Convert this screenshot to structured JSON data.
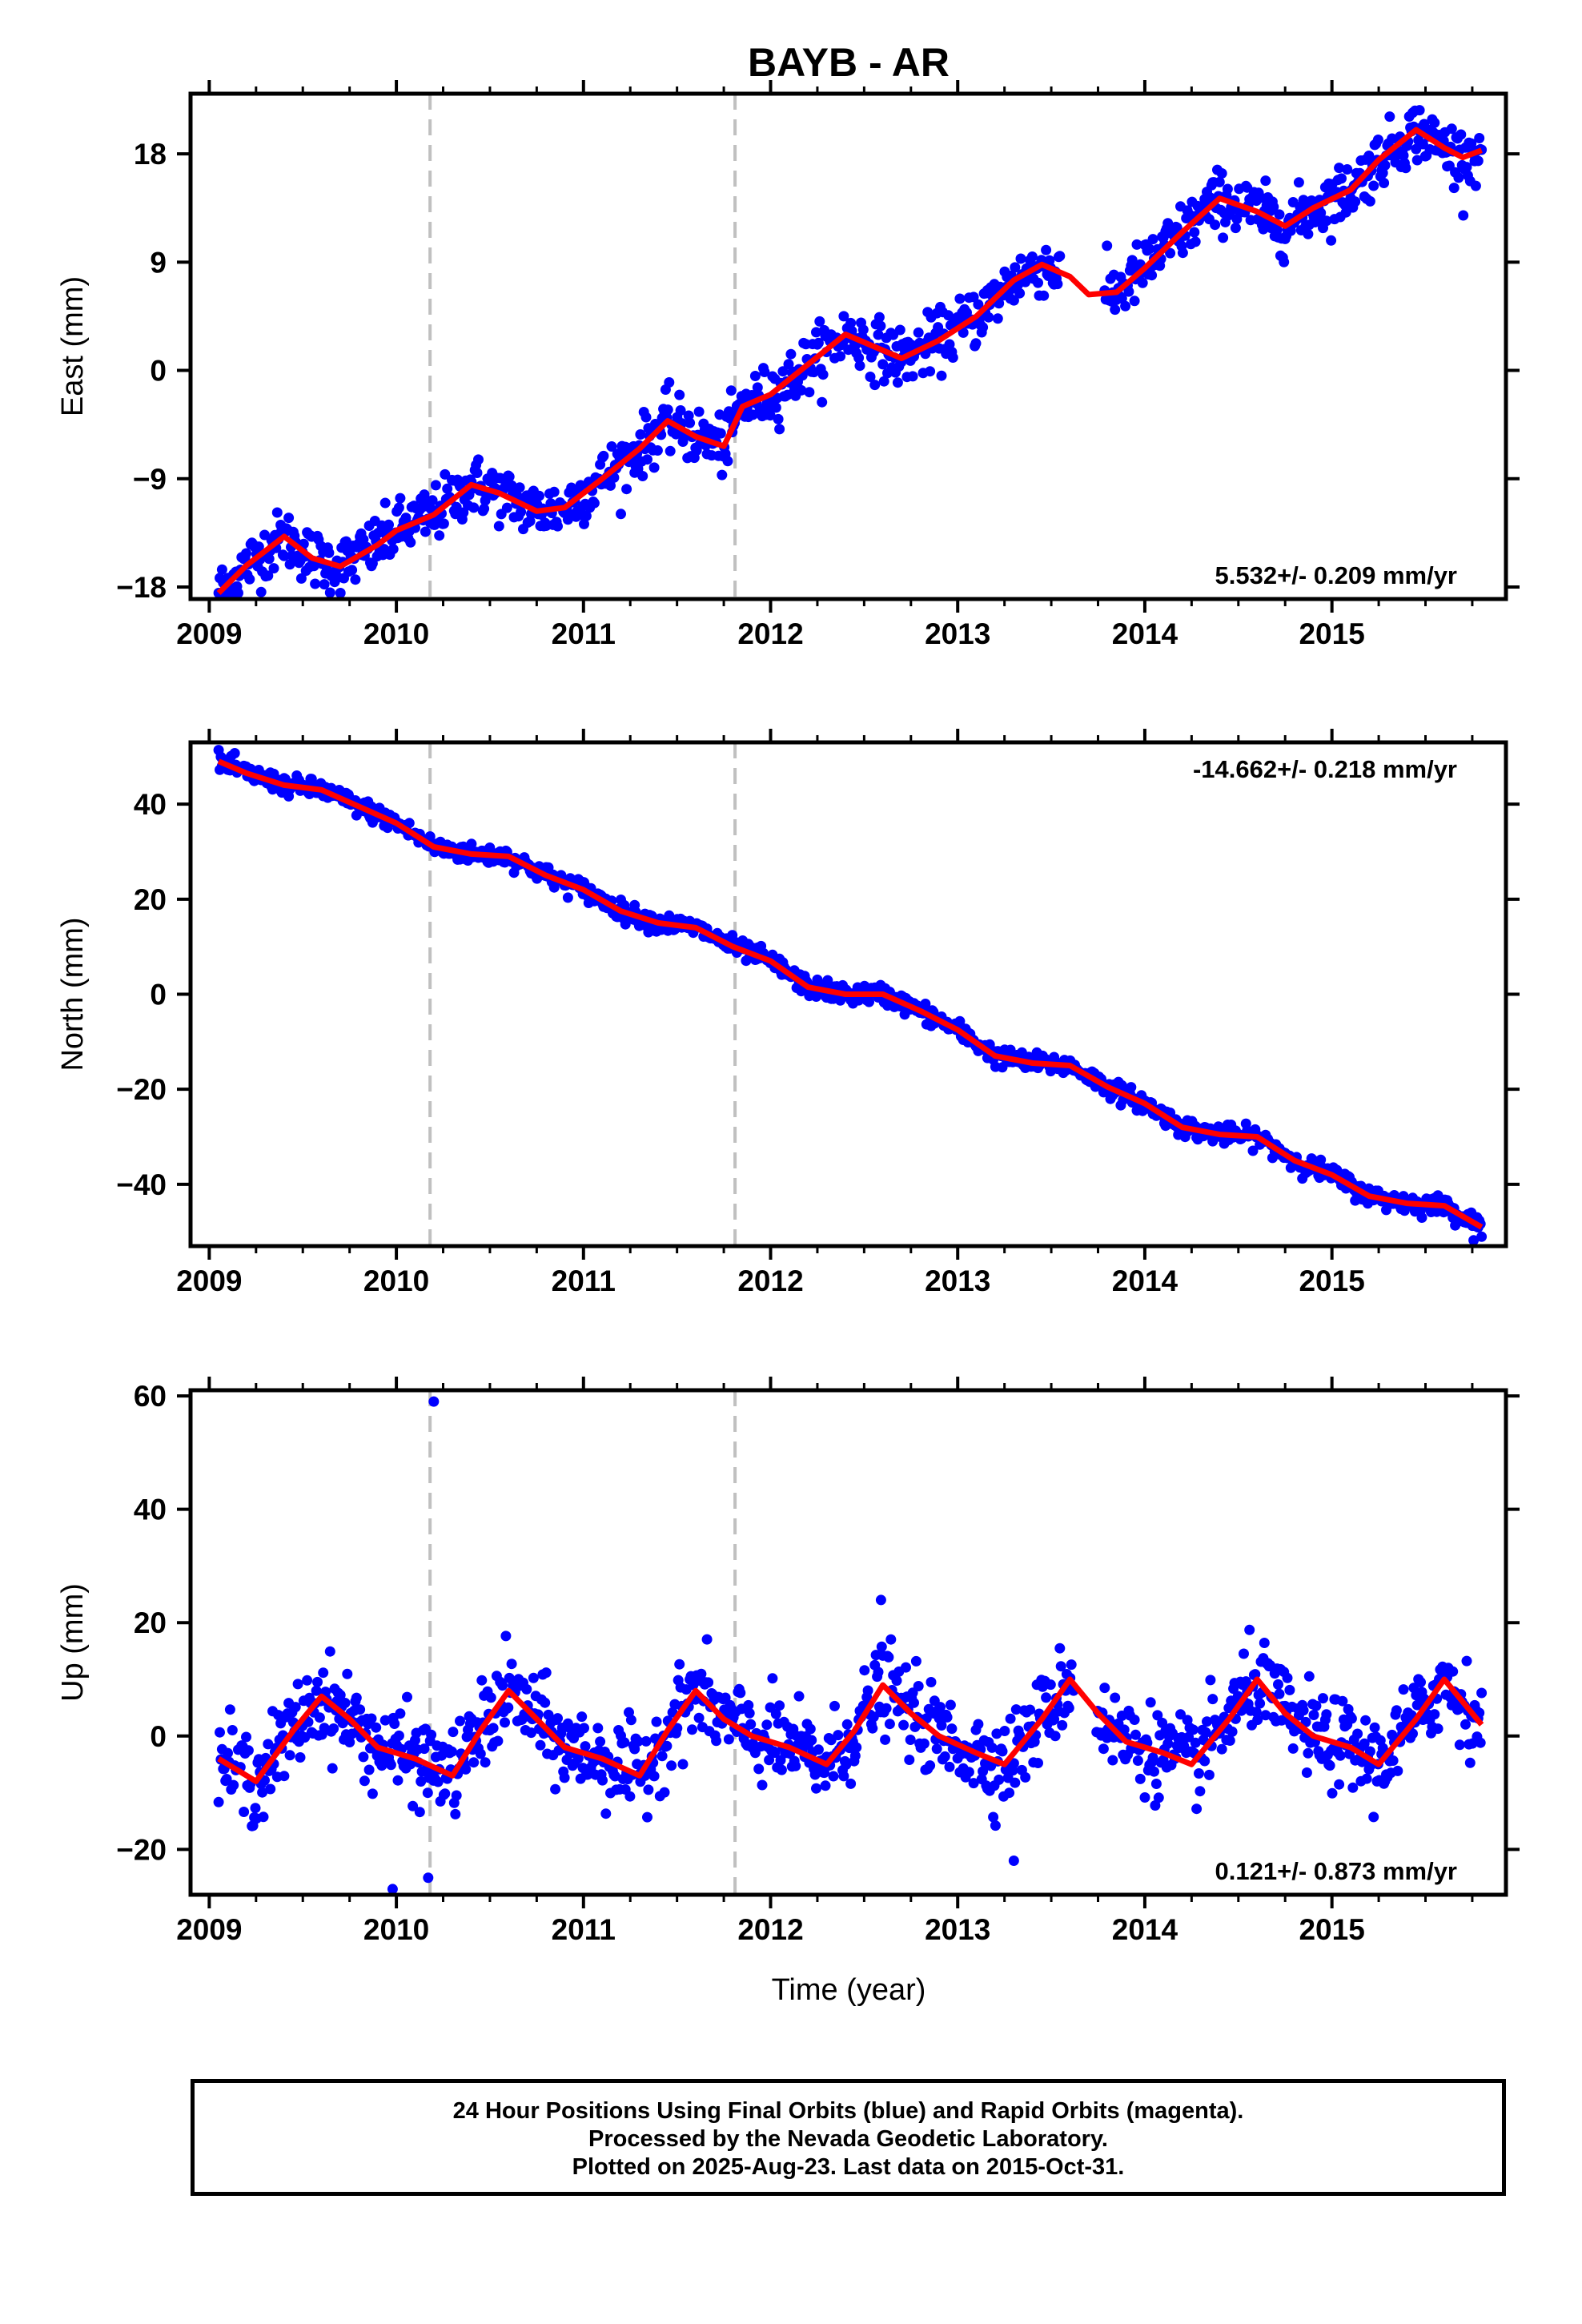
{
  "chart_data": {
    "type": "scatter",
    "title": "BAYB - AR",
    "xlabel": "Time (year)",
    "xlim": [
      2008.9,
      2015.93
    ],
    "x_ticks": [
      2009,
      2010,
      2011,
      2012,
      2013,
      2014,
      2015
    ],
    "x_tick_labels": [
      "2009",
      "2010",
      "2011",
      "2012",
      "2013",
      "2014",
      "2015"
    ],
    "vertical_dashed_lines_x": [
      2010.18,
      2011.81
    ],
    "colors": {
      "points": "#0000ff",
      "fit": "#ff0000",
      "dashed": "#c0c0c0",
      "frame": "#000000"
    },
    "series": [
      {
        "name": "Final Orbits",
        "panel": "east",
        "ylabel": "East (mm)",
        "ylim": [
          -19,
          23
        ],
        "y_ticks": [
          -18,
          -9,
          0,
          9,
          18
        ],
        "y_tick_labels": [
          "−18",
          "−9",
          "0",
          "9",
          "18"
        ],
        "rate_label": "5.532+/- 0.209 mm/yr",
        "x": [
          2009.05,
          2009.2,
          2009.4,
          2009.55,
          2009.7,
          2009.9,
          2010.0,
          2010.2,
          2010.4,
          2010.55,
          2010.75,
          2010.9,
          2011.1,
          2011.3,
          2011.45,
          2011.6,
          2011.75,
          2011.85,
          2012.0,
          2012.2,
          2012.4,
          2012.55,
          2012.7,
          2012.9,
          2013.1,
          2013.3,
          2013.45,
          2013.6,
          2013.7,
          2013.85,
          2014.0,
          2014.2,
          2014.4,
          2014.6,
          2014.75,
          2014.9,
          2015.1,
          2015.25,
          2015.45,
          2015.6,
          2015.7,
          2015.8
        ],
        "fit": [
          -18.5,
          -16.2,
          -13.8,
          -15.6,
          -16.3,
          -14.5,
          -13.3,
          -12.0,
          -9.5,
          -10.2,
          -11.7,
          -11.4,
          -9.0,
          -6.5,
          -4.2,
          -5.5,
          -6.3,
          -3.0,
          -2.0,
          0.5,
          3.0,
          2.0,
          1.0,
          2.5,
          4.5,
          7.5,
          8.8,
          7.8,
          6.3,
          6.5,
          8.5,
          11.5,
          14.3,
          13.2,
          12.0,
          13.5,
          15.0,
          17.5,
          20.0,
          18.5,
          17.7,
          18.3
        ]
      },
      {
        "name": "Final Orbits",
        "panel": "north",
        "ylabel": "North (mm)",
        "ylim": [
          -53,
          53
        ],
        "y_ticks": [
          -40,
          -20,
          0,
          20,
          40
        ],
        "y_tick_labels": [
          "−40",
          "−20",
          "0",
          "20",
          "40"
        ],
        "rate_label": "-14.662+/- 0.218 mm/yr",
        "x": [
          2009.05,
          2009.2,
          2009.4,
          2009.6,
          2009.8,
          2010.0,
          2010.2,
          2010.4,
          2010.6,
          2010.8,
          2011.0,
          2011.2,
          2011.4,
          2011.6,
          2011.8,
          2012.0,
          2012.2,
          2012.4,
          2012.6,
          2012.8,
          2013.0,
          2013.2,
          2013.4,
          2013.6,
          2013.8,
          2014.0,
          2014.2,
          2014.4,
          2014.6,
          2014.8,
          2015.0,
          2015.2,
          2015.4,
          2015.6,
          2015.8
        ],
        "fit": [
          49,
          46.5,
          44,
          43,
          39.5,
          36,
          31,
          29.5,
          29,
          25,
          22,
          17.5,
          15,
          14,
          10,
          7,
          1.5,
          0,
          0,
          -3.5,
          -7.5,
          -13,
          -14.5,
          -15,
          -19.5,
          -23,
          -28,
          -29.5,
          -30,
          -35,
          -38,
          -42.5,
          -44,
          -44.5,
          -49
        ]
      },
      {
        "name": "Final Orbits",
        "panel": "up",
        "ylabel": "Up (mm)",
        "ylim": [
          -28,
          61
        ],
        "y_ticks": [
          -20,
          0,
          20,
          40,
          60
        ],
        "y_tick_labels": [
          "−20",
          "0",
          "20",
          "40",
          "60"
        ],
        "rate_label": "0.121+/- 0.873 mm/yr",
        "x": [
          2009.05,
          2009.25,
          2009.45,
          2009.6,
          2009.75,
          2009.9,
          2010.1,
          2010.3,
          2010.45,
          2010.6,
          2010.75,
          2010.9,
          2011.1,
          2011.3,
          2011.45,
          2011.6,
          2011.75,
          2011.9,
          2012.1,
          2012.3,
          2012.45,
          2012.6,
          2012.75,
          2012.9,
          2013.1,
          2013.25,
          2013.45,
          2013.6,
          2013.75,
          2013.9,
          2014.1,
          2014.25,
          2014.45,
          2014.6,
          2014.75,
          2014.9,
          2015.1,
          2015.25,
          2015.45,
          2015.6,
          2015.8
        ],
        "fit": [
          -4,
          -8,
          1,
          7,
          3,
          -2,
          -4,
          -7,
          1,
          8,
          3,
          -2,
          -4,
          -7,
          1,
          8,
          3,
          0,
          -2,
          -5,
          1,
          9,
          4,
          0,
          -3,
          -5,
          3,
          10,
          4,
          -1,
          -3,
          -5,
          3,
          10,
          4,
          0,
          -2,
          -5,
          3,
          10,
          2
        ],
        "outliers": [
          {
            "x": 2010.2,
            "y": 59
          },
          {
            "x": 2009.98,
            "y": -27
          },
          {
            "x": 2010.17,
            "y": -25
          },
          {
            "x": 2012.59,
            "y": 24
          },
          {
            "x": 2013.3,
            "y": -22
          }
        ]
      }
    ]
  },
  "footer": {
    "line1": "24 Hour Positions Using Final Orbits (blue) and Rapid Orbits (magenta).",
    "line2": "Processed by the Nevada Geodetic Laboratory.",
    "line3": "Plotted on 2025-Aug-23. Last data on 2015-Oct-31."
  }
}
